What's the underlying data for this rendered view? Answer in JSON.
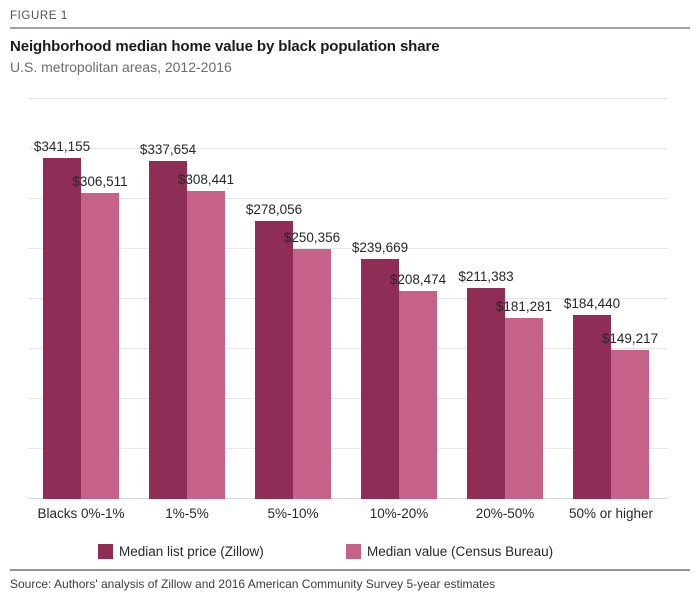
{
  "figure_label": "FIGURE 1",
  "title": "Neighborhood median home value by black population share",
  "subtitle": "U.S. metropolitan areas, 2012-2016",
  "source": "Source: Authors' analysis of Zillow and 2016 American Community Survey 5-year estimates",
  "colors": {
    "dark_bar": "#8e2d55",
    "light_bar": "#c6618a",
    "gridline": "#e7e7e7",
    "baseline": "#d6d6d6",
    "header_rule": "#9aa1a8",
    "footer_rule": "#8f959b"
  },
  "legend": [
    {
      "label": "Median list price (Zillow)",
      "color": "#8e2d55"
    },
    {
      "label": "Median value (Census Bureau)",
      "color": "#c6618a"
    }
  ],
  "chart_data": {
    "type": "bar",
    "title": "Neighborhood median home value by black population share",
    "subtitle": "U.S. metropolitan areas, 2012-2016",
    "categories": [
      "Blacks 0%-1%",
      "1%-5%",
      "5%-10%",
      "10%-20%",
      "20%-50%",
      "50% or higher"
    ],
    "series": [
      {
        "name": "Median list price (Zillow)",
        "values": [
          341155,
          337654,
          278056,
          239669,
          211383,
          184440
        ],
        "value_labels": [
          "$341,155",
          "$337,654",
          "$278,056",
          "$239,669",
          "$211,383",
          "$184,440"
        ]
      },
      {
        "name": "Median value (Census Bureau)",
        "values": [
          306511,
          308441,
          250356,
          208474,
          181281,
          149217
        ],
        "value_labels": [
          "$306,511",
          "$308,441",
          "$250,356",
          "$208,474",
          "$181,281",
          "$149,217"
        ]
      }
    ],
    "xlabel": "",
    "ylabel": "",
    "ylim": [
      0,
      400000
    ],
    "gridline_interval": 50000,
    "grid": true,
    "y_axis_labels_shown": false,
    "legend_position": "bottom",
    "value_label_format": "$#,##0"
  }
}
